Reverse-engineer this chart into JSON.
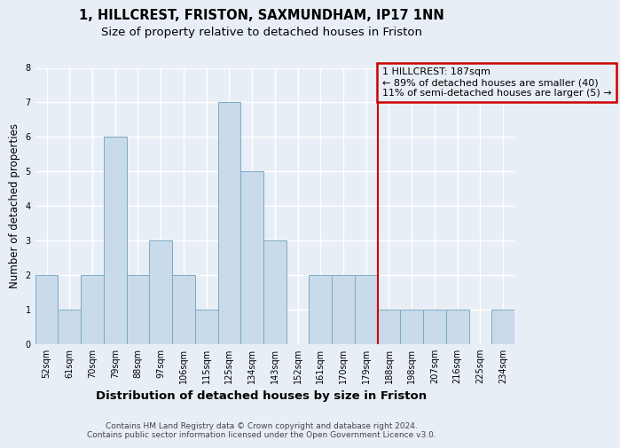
{
  "title": "1, HILLCREST, FRISTON, SAXMUNDHAM, IP17 1NN",
  "subtitle": "Size of property relative to detached houses in Friston",
  "xlabel": "Distribution of detached houses by size in Friston",
  "ylabel": "Number of detached properties",
  "categories": [
    "52sqm",
    "61sqm",
    "70sqm",
    "79sqm",
    "88sqm",
    "97sqm",
    "106sqm",
    "115sqm",
    "125sqm",
    "134sqm",
    "143sqm",
    "152sqm",
    "161sqm",
    "170sqm",
    "179sqm",
    "188sqm",
    "198sqm",
    "207sqm",
    "216sqm",
    "225sqm",
    "234sqm"
  ],
  "values": [
    2,
    1,
    2,
    6,
    2,
    3,
    2,
    1,
    7,
    5,
    3,
    0,
    2,
    2,
    2,
    1,
    1,
    1,
    1,
    0,
    1
  ],
  "bar_color": "#c9daea",
  "bar_edge_color": "#7aaac8",
  "marker_color": "#cc0000",
  "marker_index": 15,
  "annotation_text": "1 HILLCREST: 187sqm\n← 89% of detached houses are smaller (40)\n11% of semi-detached houses are larger (5) →",
  "annotation_box_color": "#cc0000",
  "ylim": [
    0,
    8
  ],
  "yticks": [
    0,
    1,
    2,
    3,
    4,
    5,
    6,
    7,
    8
  ],
  "footer_text": "Contains HM Land Registry data © Crown copyright and database right 2024.\nContains public sector information licensed under the Open Government Licence v3.0.",
  "bg_color": "#e8eef5",
  "grid_color": "#ffffff",
  "title_fontsize": 10.5,
  "subtitle_fontsize": 9.5,
  "tick_fontsize": 7,
  "ylabel_fontsize": 8.5,
  "xlabel_fontsize": 9.5,
  "annotation_fontsize": 8,
  "footer_fontsize": 6.5
}
